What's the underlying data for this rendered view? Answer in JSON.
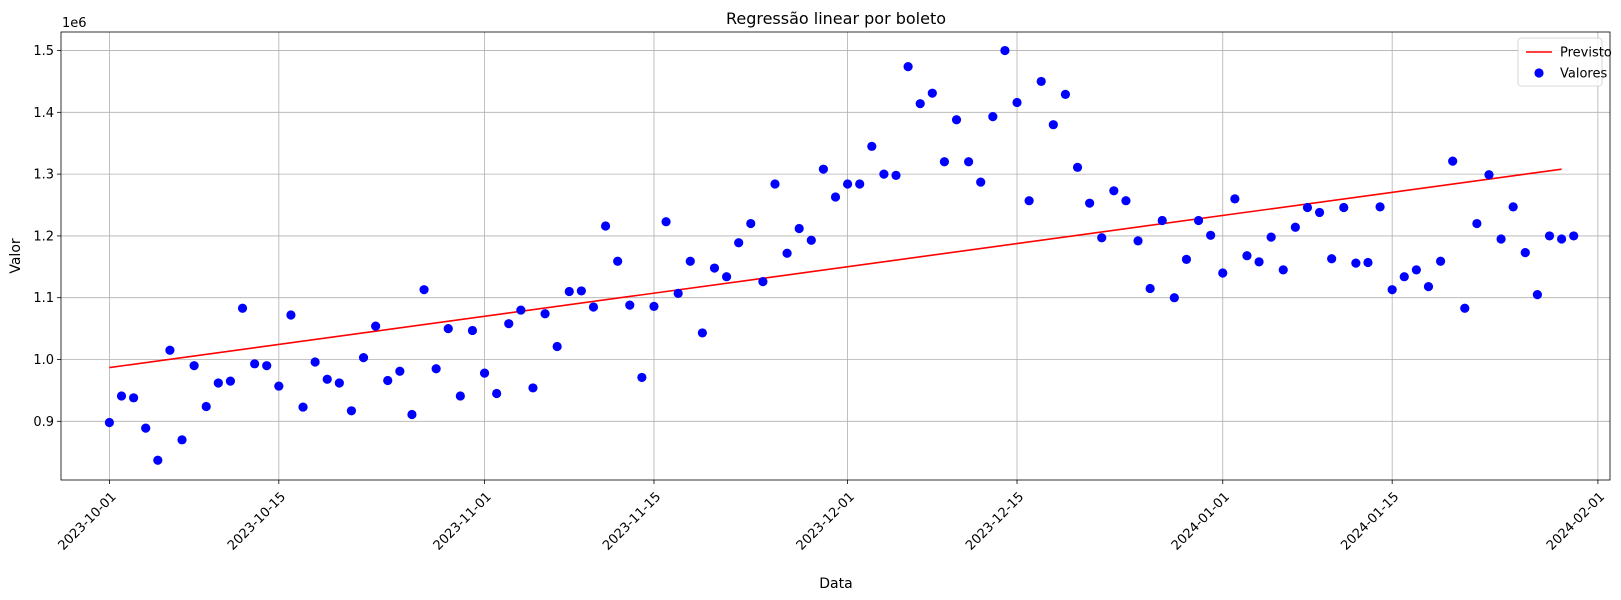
{
  "chart_data": {
    "type": "scatter",
    "title": "Regressão linear por boleto",
    "xlabel": "Data",
    "ylabel": "Valor",
    "y_multiplier_label": "1e6",
    "x_axis": "date",
    "xlim": [
      "2023-09-27",
      "2024-02-02"
    ],
    "ylim": [
      0.805,
      1.53
    ],
    "y_ticks": [
      0.9,
      1.0,
      1.1,
      1.2,
      1.3,
      1.4,
      1.5
    ],
    "y_tick_labels": [
      "0.9",
      "1.0",
      "1.1",
      "1.2",
      "1.3",
      "1.4",
      "1.5"
    ],
    "x_ticks": [
      "2023-10-01",
      "2023-10-15",
      "2023-11-01",
      "2023-11-15",
      "2023-12-01",
      "2023-12-15",
      "2024-01-01",
      "2024-01-15",
      "2024-02-01"
    ],
    "grid": true,
    "legend_position": "top-right",
    "series": [
      {
        "name": "Previsto",
        "kind": "line",
        "color": "#ff0000",
        "x": [
          "2023-10-01",
          "2024-01-29"
        ],
        "y": [
          0.987,
          1.308
        ]
      },
      {
        "name": "Valores",
        "kind": "scatter",
        "color": "#0000ff",
        "start_date": "2023-10-01",
        "y": [
          0.898,
          0.941,
          0.938,
          0.889,
          0.837,
          1.015,
          0.87,
          0.99,
          0.924,
          0.962,
          0.965,
          1.083,
          0.993,
          0.99,
          0.957,
          1.072,
          0.923,
          0.996,
          0.968,
          0.962,
          0.917,
          1.003,
          1.054,
          0.966,
          0.981,
          0.911,
          1.113,
          0.985,
          1.05,
          0.941,
          1.047,
          0.978,
          0.945,
          1.058,
          1.08,
          0.954,
          1.074,
          1.021,
          1.11,
          1.111,
          1.085,
          1.216,
          1.159,
          1.088,
          0.971,
          1.086,
          1.223,
          1.107,
          1.159,
          1.043,
          1.148,
          1.134,
          1.189,
          1.22,
          1.126,
          1.284,
          1.172,
          1.212,
          1.193,
          1.308,
          1.263,
          1.284,
          1.284,
          1.345,
          1.3,
          1.298,
          1.474,
          1.414,
          1.431,
          1.32,
          1.388,
          1.32,
          1.287,
          1.393,
          1.5,
          1.416,
          1.257,
          1.45,
          1.38,
          1.429,
          1.311,
          1.253,
          1.197,
          1.273,
          1.257,
          1.192,
          1.115,
          1.225,
          1.1,
          1.162,
          1.225,
          1.201,
          1.14,
          1.26,
          1.168,
          1.158,
          1.198,
          1.145,
          1.214,
          1.246,
          1.238,
          1.163,
          1.246,
          1.156,
          1.157,
          1.247,
          1.113,
          1.134,
          1.145,
          1.118,
          1.159,
          1.321,
          1.083,
          1.22,
          1.299,
          1.195,
          1.247,
          1.173,
          1.105,
          1.2,
          1.195,
          1.2
        ]
      }
    ]
  }
}
